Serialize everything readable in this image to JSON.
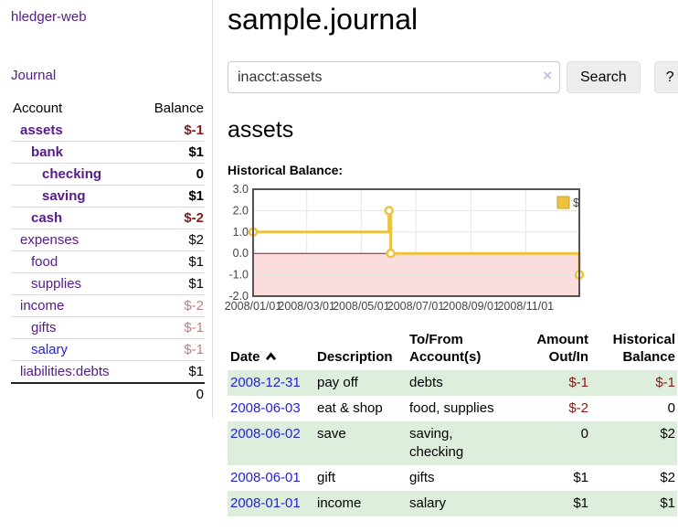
{
  "colors": {
    "link_purple": "#551a8b",
    "link_blue": "#2222dd",
    "negative_strong": "#871a1a",
    "negative_muted": "#bc8080",
    "row_stripe_green": "#ddeedd",
    "chart_series_gold": "#edc240",
    "chart_legend_border": "#c9a22c",
    "chart_negative_fill": "#fbdddd",
    "chart_zero_line": "#8b1a1a",
    "chart_grid": "#e6e6e6",
    "chart_border": "#545454",
    "chart_axis_text": "#444444"
  },
  "sidebar": {
    "title": "hledger-web",
    "nav": {
      "journal": "Journal"
    },
    "accounts": {
      "headers": {
        "account": "Account",
        "balance": "Balance"
      },
      "rows": [
        {
          "name": "assets",
          "balance": "$-1",
          "level": 1,
          "bold": true,
          "style": "neg-strong",
          "link": "purple"
        },
        {
          "name": "bank",
          "balance": "$1",
          "level": 2,
          "bold": true,
          "style": "pos-strong",
          "link": "purple"
        },
        {
          "name": "checking",
          "balance": "0",
          "level": 3,
          "bold": true,
          "style": "pos-strong",
          "link": "purple"
        },
        {
          "name": "saving",
          "balance": "$1",
          "level": 3,
          "bold": true,
          "style": "pos-strong",
          "link": "purple"
        },
        {
          "name": "cash",
          "balance": "$-2",
          "level": 2,
          "bold": true,
          "style": "neg-strong",
          "link": "purple"
        },
        {
          "name": "expenses",
          "balance": "$2",
          "level": 1,
          "bold": false,
          "style": "pos",
          "link": "purple"
        },
        {
          "name": "food",
          "balance": "$1",
          "level": 2,
          "bold": false,
          "style": "pos",
          "link": "purple"
        },
        {
          "name": "supplies",
          "balance": "$1",
          "level": 2,
          "bold": false,
          "style": "pos",
          "link": "purple"
        },
        {
          "name": "income",
          "balance": "$-2",
          "level": 1,
          "bold": false,
          "style": "neg-muted",
          "link": "purple"
        },
        {
          "name": "gifts",
          "balance": "$-1",
          "level": 2,
          "bold": false,
          "style": "neg-muted",
          "link": "purple"
        },
        {
          "name": "salary",
          "balance": "$-1",
          "level": 2,
          "bold": false,
          "style": "neg-muted",
          "link": "blue"
        },
        {
          "name": "liabilities:debts",
          "balance": "$1",
          "level": 1,
          "bold": false,
          "style": "pos",
          "link": "purple"
        }
      ],
      "total": "0"
    }
  },
  "main": {
    "title": "sample.journal",
    "search": {
      "value": "inacct:assets",
      "placeholder": "",
      "clear_icon": "×",
      "button": "Search",
      "help_button": "?"
    },
    "account_heading": "assets",
    "chart_label": "Historical Balance:",
    "chart_data": {
      "type": "line",
      "step": true,
      "title": "Historical Balance",
      "series": [
        {
          "name": "$",
          "points": [
            [
              "2008-01-01",
              1.0
            ],
            [
              "2008-06-01",
              2.0
            ],
            [
              "2008-06-03",
              0.0
            ],
            [
              "2008-12-31",
              -1.0
            ]
          ]
        }
      ],
      "ylim": [
        -2.0,
        3.0
      ],
      "yticks": [
        3.0,
        2.0,
        1.0,
        0.0,
        -1.0,
        -2.0
      ],
      "xlim": [
        "2008-01-01",
        "2008-12-31"
      ],
      "xticks": [
        {
          "date": "2008-01-01",
          "label": "2008/01/01"
        },
        {
          "date": "2008-03-01",
          "label": "2008/03/01"
        },
        {
          "date": "2008-05-01",
          "label": "2008/05/01"
        },
        {
          "date": "2008-07-01",
          "label": "2008/07/01"
        },
        {
          "date": "2008-09-01",
          "label": "2008/09/01"
        },
        {
          "date": "2008-11-01",
          "label": "2008/11/01"
        }
      ],
      "legend": {
        "label": "$",
        "position": "top-right"
      },
      "grid": true,
      "negative_region_shaded": true,
      "zero_line": true
    },
    "transactions": {
      "headers": [
        "Date",
        "Description",
        "To/From Account(s)",
        "Amount Out/In",
        "Historical Balance"
      ],
      "sort": {
        "column": "Date",
        "direction": "asc"
      },
      "rows": [
        {
          "date": "2008-12-31",
          "description": "pay off",
          "accounts": "debts",
          "amount": "$-1",
          "balance": "$-1"
        },
        {
          "date": "2008-06-03",
          "description": "eat & shop",
          "accounts": "food, supplies",
          "amount": "$-2",
          "balance": "0"
        },
        {
          "date": "2008-06-02",
          "description": "save",
          "accounts": "saving, checking",
          "amount": "0",
          "balance": "$2"
        },
        {
          "date": "2008-06-01",
          "description": "gift",
          "accounts": "gifts",
          "amount": "$1",
          "balance": "$2"
        },
        {
          "date": "2008-01-01",
          "description": "income",
          "accounts": "salary",
          "amount": "$1",
          "balance": "$1"
        }
      ]
    }
  }
}
